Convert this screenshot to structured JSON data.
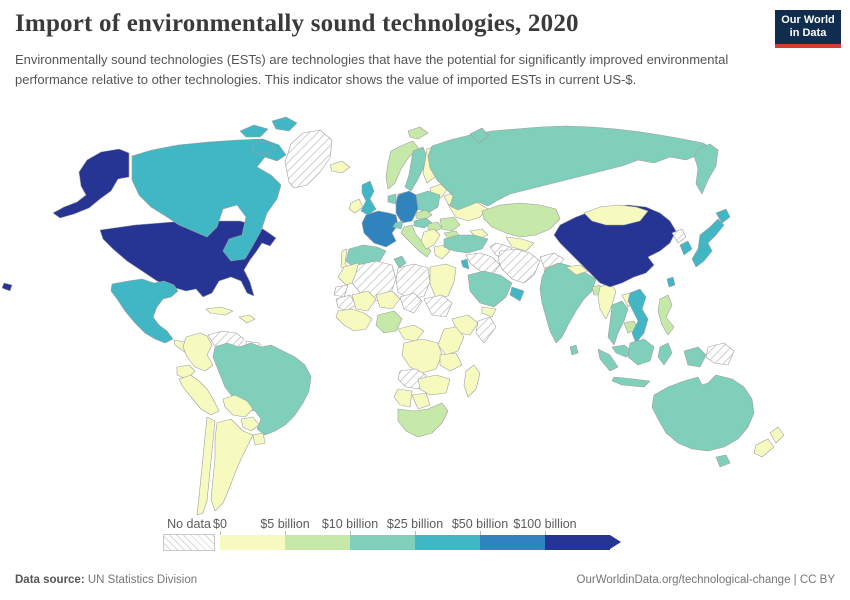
{
  "header": {
    "title": "Import of environmentally sound technologies, 2020",
    "subtitle": "Environmentally sound technologies (ESTs) are technologies that have the potential for significantly improved environmental performance relative to other technologies. This indicator shows the value of imported ESTs in current US-$.",
    "logo": {
      "line1": "Our World",
      "line2": "in Data"
    }
  },
  "legend": {
    "no_data_label": "No data",
    "bins": [
      {
        "label": "$0",
        "key": "0-5",
        "color": "#f6fabe"
      },
      {
        "label": "$5 billion",
        "key": "5-10",
        "color": "#c6e8a8"
      },
      {
        "label": "$10 billion",
        "key": "10-25",
        "color": "#80cfba"
      },
      {
        "label": "$25 billion",
        "key": "25-50",
        "color": "#41b6c4"
      },
      {
        "label": "$50 billion",
        "key": "50-100",
        "color": "#2f84bd"
      },
      {
        "label": "$100 billion",
        "key": "100+",
        "color": "#263494"
      }
    ]
  },
  "chart_data": {
    "type": "choropleth",
    "title": "Import of environmentally sound technologies, 2020",
    "unit": "current US-$",
    "bin_edges": [
      "$0",
      "$5 billion",
      "$10 billion",
      "$25 billion",
      "$50 billion",
      "$100 billion"
    ],
    "no_data_key": "no-data",
    "countries": {
      "United States": "100+",
      "China": "100+",
      "Germany": "50-100",
      "France": "50-100",
      "Canada": "25-50",
      "Mexico": "25-50",
      "United Kingdom": "25-50",
      "Japan": "25-50",
      "South Korea": "25-50",
      "Vietnam": "25-50",
      "United Arab Emirates": "25-50",
      "Taiwan": "25-50",
      "Israel": "25-50",
      "Russia": "10-25",
      "Brazil": "10-25",
      "India": "10-25",
      "Australia": "10-25",
      "Spain": "10-25",
      "Poland": "10-25",
      "Sweden": "10-25",
      "Turkey": "10-25",
      "Thailand": "10-25",
      "Indonesia": "10-25",
      "Malaysia": "10-25",
      "Saudi Arabia": "10-25",
      "Netherlands": "10-25",
      "Switzerland": "10-25",
      "Austria": "10-25",
      "Tunisia": "10-25",
      "Sri Lanka": "10-25",
      "Norway": "5-10",
      "Kazakhstan": "5-10",
      "Nigeria": "5-10",
      "South Africa": "5-10",
      "Philippines": "5-10",
      "Romania": "5-10",
      "Hungary": "5-10",
      "Bulgaria": "5-10",
      "Italy": "5-10",
      "Denmark": "5-10",
      "Czechia": "5-10",
      "Bangladesh": "5-10",
      "Cambodia": "5-10",
      "Svalbard": "5-10",
      "Iceland": "0-5",
      "Ireland": "0-5",
      "Finland": "0-5",
      "Portugal": "0-5",
      "Greece": "0-5",
      "Ukraine": "0-5",
      "Belarus": "0-5",
      "Baltic states": "0-5",
      "Balkans": "0-5",
      "Mongolia": "0-5",
      "Myanmar": "0-5",
      "Laos": "0-5",
      "Nepal": "0-5",
      "Pakistan": "0-5",
      "Uzbekistan": "0-5",
      "Caucasus": "0-5",
      "Yemen": "0-5",
      "Morocco": "0-5",
      "Mali": "0-5",
      "Niger": "0-5",
      "West Africa": "0-5",
      "Cameroon & CAR": "0-5",
      "DR Congo": "0-5",
      "Kenya": "0-5",
      "Tanzania": "0-5",
      "Zambia & Mozambique": "0-5",
      "Namibia": "0-5",
      "Botswana": "0-5",
      "Madagascar": "0-5",
      "Ethiopia": "0-5",
      "Egypt": "0-5",
      "Colombia": "0-5",
      "Ecuador": "0-5",
      "Peru": "0-5",
      "Bolivia": "0-5",
      "Paraguay": "0-5",
      "Uruguay": "0-5",
      "Chile": "0-5",
      "Argentina": "0-5",
      "Cuba": "0-5",
      "Hispaniola": "0-5",
      "Central America": "0-5",
      "New Zealand": "0-5",
      "Greenland": "no-data",
      "Venezuela": "no-data",
      "Guyana & Suriname": "no-data",
      "Iran": "no-data",
      "Iraq & Syria": "no-data",
      "Afghanistan": "no-data",
      "Turkmenistan": "no-data",
      "Libya": "no-data",
      "Algeria": "no-data",
      "Western Sahara": "no-data",
      "Mauritania": "no-data",
      "Chad": "no-data",
      "Sudan": "no-data",
      "Somalia": "no-data",
      "Angola": "no-data",
      "Papua New Guinea": "no-data",
      "North Korea": "no-data"
    }
  },
  "footer": {
    "source_label": "Data source:",
    "source_value": "UN Statistics Division",
    "right": "OurWorldinData.org/technological-change | CC BY"
  }
}
